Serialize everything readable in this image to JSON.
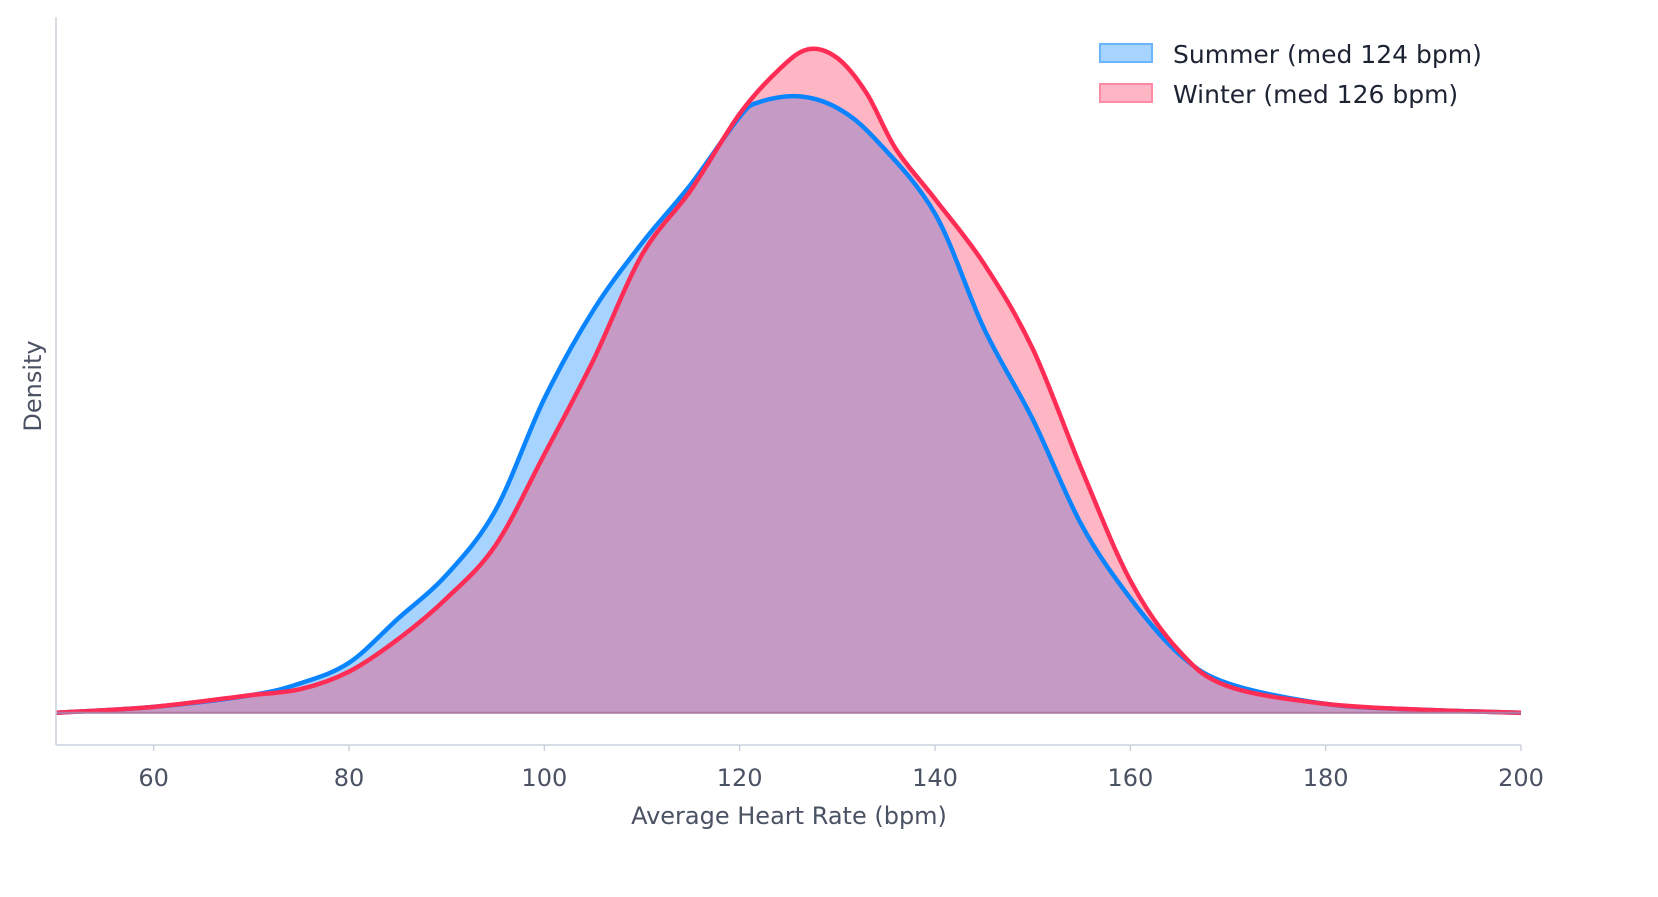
{
  "chart_data": {
    "type": "area",
    "title": "",
    "xlabel": "Average Heart Rate (bpm)",
    "ylabel": "Density",
    "xlim": [
      50,
      200
    ],
    "ylim": [
      -0.0011,
      0.0237
    ],
    "xticks": [
      60,
      80,
      100,
      120,
      140,
      160,
      180,
      200
    ],
    "xtick_labels": [
      "60",
      "80",
      "100",
      "120",
      "140",
      "160",
      "180",
      "200"
    ],
    "grid": false,
    "legend_position": "top-right",
    "series": [
      {
        "name": "Summer (med 124 bpm)",
        "color": "#0a84ff",
        "fill": "rgba(0,132,255,0.35)",
        "x": [
          50,
          60,
          70,
          75,
          80,
          85,
          90,
          95,
          100,
          105,
          110,
          115,
          120,
          122,
          126,
          130,
          134,
          140,
          145,
          150,
          155,
          160,
          165,
          170,
          180,
          190,
          200
        ],
        "y": [
          0.0,
          0.0002,
          0.0006,
          0.001,
          0.0017,
          0.0032,
          0.0047,
          0.0069,
          0.0107,
          0.0137,
          0.016,
          0.018,
          0.0203,
          0.0208,
          0.021,
          0.0206,
          0.0195,
          0.017,
          0.0131,
          0.01,
          0.0064,
          0.0039,
          0.002,
          0.001,
          0.0003,
          0.0001,
          0.0
        ]
      },
      {
        "name": "Winter (med 126 bpm)",
        "color": "#ff2d55",
        "fill": "rgba(255,45,85,0.35)",
        "x": [
          50,
          60,
          70,
          75,
          80,
          85,
          90,
          95,
          100,
          105,
          110,
          115,
          120,
          124,
          127,
          130,
          133,
          136,
          140,
          145,
          150,
          155,
          160,
          165,
          170,
          180,
          190,
          200
        ],
        "y": [
          0.0,
          0.0002,
          0.0006,
          0.0008,
          0.0014,
          0.0025,
          0.0039,
          0.0057,
          0.0088,
          0.012,
          0.0156,
          0.0178,
          0.0204,
          0.0219,
          0.0226,
          0.0223,
          0.0211,
          0.0192,
          0.0175,
          0.0153,
          0.0124,
          0.0083,
          0.0045,
          0.0021,
          0.0009,
          0.0003,
          0.0001,
          0.0
        ]
      }
    ]
  }
}
